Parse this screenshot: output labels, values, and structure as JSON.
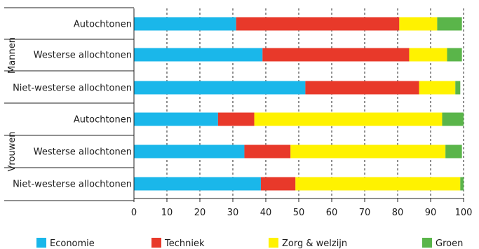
{
  "chart_data": {
    "type": "bar",
    "orientation": "horizontal",
    "stacked": true,
    "groups": [
      {
        "label": "Mannen",
        "categories": [
          "Autochtonen",
          "Westerse allochtonen",
          "Niet-westerse allochtonen"
        ]
      },
      {
        "label": "Vrouwen",
        "categories": [
          "Autochtonen",
          "Westerse allochtonen",
          "Niet-westerse allochtonen"
        ]
      }
    ],
    "series": [
      {
        "name": "Economie",
        "color": "#1ab7ea",
        "values": [
          31,
          39,
          52,
          25.5,
          33.5,
          38.5
        ]
      },
      {
        "name": "Techniek",
        "color": "#e8392a",
        "values": [
          49.5,
          44.5,
          34.5,
          11,
          14,
          10.5
        ]
      },
      {
        "name": "Zorg & welzijn",
        "color": "#fff200",
        "values": [
          11.5,
          11.5,
          11,
          57,
          47,
          50
        ]
      },
      {
        "name": "Groen",
        "color": "#5ab54a",
        "values": [
          7.5,
          4.5,
          1.5,
          6.5,
          5,
          1
        ]
      }
    ],
    "xlim": [
      0,
      100
    ],
    "xticks": [
      0,
      10,
      20,
      30,
      40,
      50,
      60,
      70,
      80,
      90,
      100
    ],
    "grid": "vertical dashed",
    "legend_position": "bottom"
  }
}
